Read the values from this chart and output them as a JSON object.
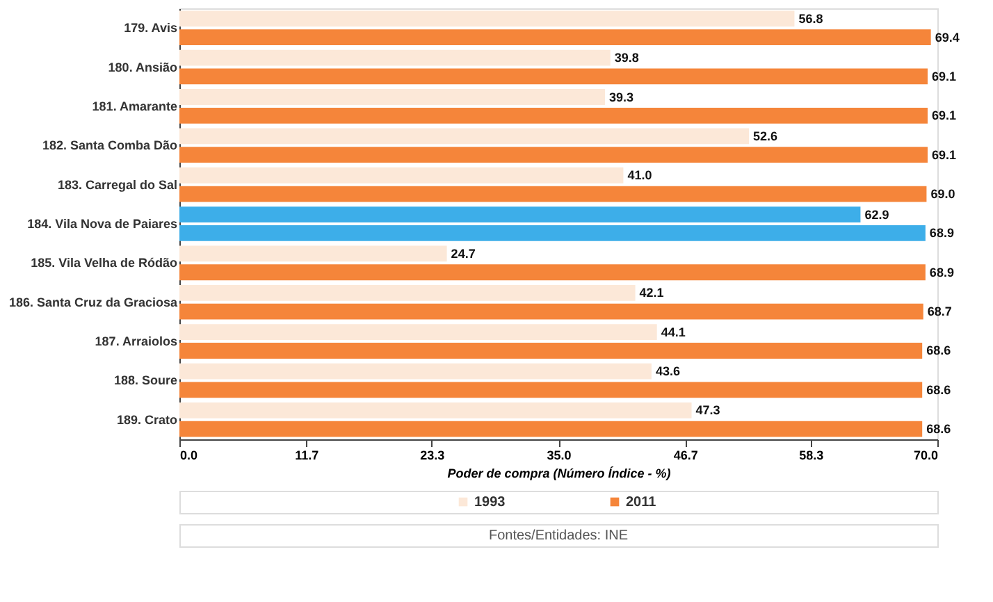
{
  "chart_data": {
    "type": "bar",
    "orientation": "horizontal",
    "categories": [
      "179. Avis",
      "180. Ansião",
      "181. Amarante",
      "182. Santa Comba Dão",
      "183. Carregal do Sal",
      "184. Vila Nova de Paiares",
      "185. Vila Velha de Ródão",
      "186. Santa Cruz da Graciosa",
      "187. Arraiolos",
      "188. Soure",
      "189. Crato"
    ],
    "series": [
      {
        "name": "1993",
        "color": "#fce8d8",
        "colors": [
          "#fce8d8",
          "#fce8d8",
          "#fce8d8",
          "#fce8d8",
          "#fce8d8",
          "#3daee9",
          "#fce8d8",
          "#fce8d8",
          "#fce8d8",
          "#fce8d8",
          "#fce8d8"
        ],
        "values": [
          56.8,
          39.8,
          39.3,
          52.6,
          41.0,
          62.9,
          24.7,
          42.1,
          44.1,
          43.6,
          47.3
        ],
        "value_labels": [
          "56.8",
          "39.8",
          "39.3",
          "52.6",
          "41.0",
          "62.9",
          "24.7",
          "42.1",
          "44.1",
          "43.6",
          "47.3"
        ]
      },
      {
        "name": "2011",
        "color": "#f5853a",
        "colors": [
          "#f5853a",
          "#f5853a",
          "#f5853a",
          "#f5853a",
          "#f5853a",
          "#3daee9",
          "#f5853a",
          "#f5853a",
          "#f5853a",
          "#f5853a",
          "#f5853a"
        ],
        "values": [
          69.4,
          69.1,
          69.1,
          69.1,
          69.0,
          68.9,
          68.9,
          68.7,
          68.6,
          68.6,
          68.6
        ],
        "value_labels": [
          "69.4",
          "69.1",
          "69.1",
          "69.1",
          "69.0",
          "68.9",
          "68.9",
          "68.7",
          "68.6",
          "68.6",
          "68.6"
        ]
      }
    ],
    "xlim": [
      0,
      70
    ],
    "xticks": [
      {
        "value": 0,
        "label": "0.0"
      },
      11.7,
      23.3,
      {
        "value": 35,
        "label": "35.0"
      },
      46.7,
      58.3,
      {
        "value": 70,
        "label": "70.0"
      }
    ],
    "xlabel": "Poder de compra (Número Índice - %)",
    "legend": "bottom",
    "grid": false,
    "annotations": [
      "Fontes/Entidades: INE"
    ]
  }
}
